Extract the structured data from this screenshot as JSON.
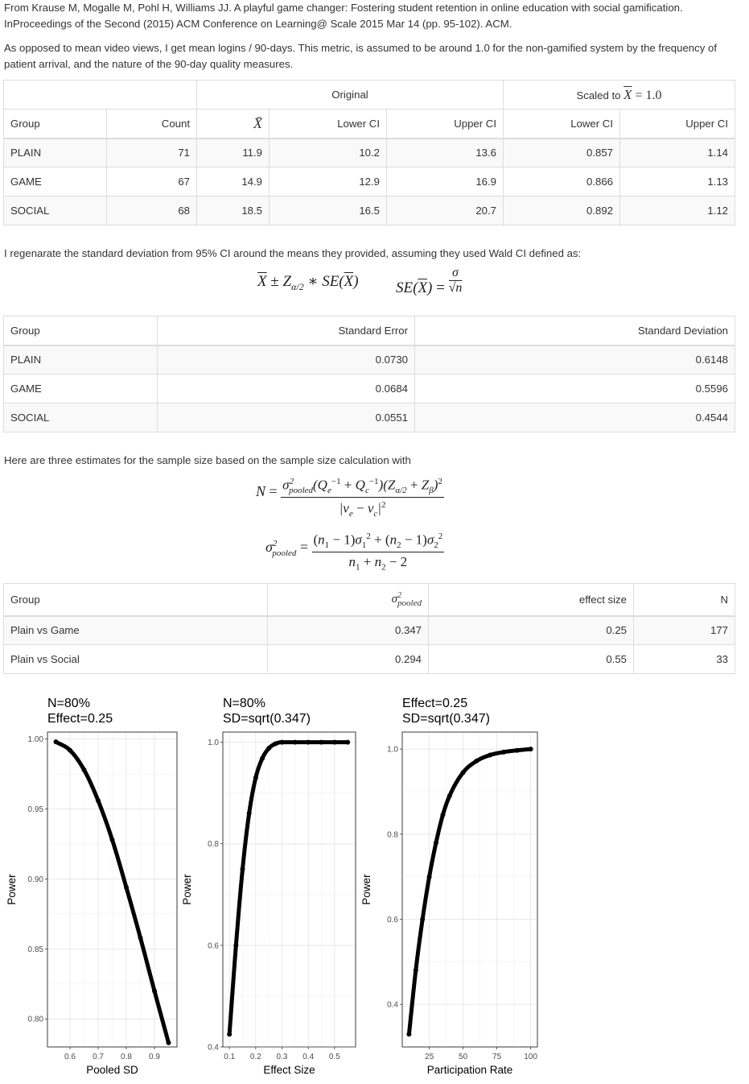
{
  "intro": {
    "citation": "From Krause M, Mogalle M, Pohl H, Williams JJ. A playful game changer: Fostering student retention in online education with social gamification. InProceedings of the Second (2015) ACM Conference on Learning@ Scale 2015 Mar 14 (pp. 95-102). ACM.",
    "note": "As opposed to mean video views, I get mean logins / 90-days. This metric, is assumed to be around 1.0 for the non-gamified system by the frequency of patient arrival, and the nature of the 90-day quality measures."
  },
  "table1": {
    "group_original": "Original",
    "group_scaled": "Scaled to",
    "headers": [
      "Group",
      "Count",
      "X̄",
      "Lower CI",
      "Upper CI",
      "Lower CI",
      "Upper CI"
    ],
    "rows": [
      [
        "PLAIN",
        "71",
        "11.9",
        "10.2",
        "13.6",
        "0.857",
        "1.14"
      ],
      [
        "GAME",
        "67",
        "14.9",
        "12.9",
        "16.9",
        "0.866",
        "1.13"
      ],
      [
        "SOCIAL",
        "68",
        "18.5",
        "16.5",
        "20.7",
        "0.892",
        "1.12"
      ]
    ]
  },
  "text2": "I regenarate the standard deviation from 95% CI around the means they provided, assuming they used Wald CI defined as:",
  "table2": {
    "headers": [
      "Group",
      "Standard Error",
      "Standard Deviation"
    ],
    "rows": [
      [
        "PLAIN",
        "0.0730",
        "0.6148"
      ],
      [
        "GAME",
        "0.0684",
        "0.5596"
      ],
      [
        "SOCIAL",
        "0.0551",
        "0.4544"
      ]
    ]
  },
  "text3": "Here are three estimates for the sample size based on the sample size calculation with",
  "table3": {
    "headers": [
      "Group",
      "σ²pooled",
      "effect size",
      "N"
    ],
    "rows": [
      [
        "Plain vs Game",
        "0.347",
        "0.25",
        "177"
      ],
      [
        "Plain vs Social",
        "0.294",
        "0.55",
        "33"
      ]
    ]
  },
  "chart_data": [
    {
      "type": "line",
      "title": "N=80%\nEffect=0.25",
      "xlabel": "Pooled SD",
      "ylabel": "Power",
      "xlim": [
        0.52,
        0.98
      ],
      "ylim": [
        0.78,
        1.005
      ],
      "xticks": [
        0.6,
        0.7,
        0.8,
        0.9
      ],
      "yticks": [
        0.8,
        0.85,
        0.9,
        0.95,
        1.0
      ],
      "ytick_labels": [
        "0.80",
        "0.85",
        "0.90",
        "0.95",
        "1.00"
      ],
      "x": [
        0.55,
        0.6,
        0.65,
        0.7,
        0.75,
        0.8,
        0.85,
        0.9,
        0.95
      ],
      "y": [
        0.998,
        0.992,
        0.978,
        0.956,
        0.928,
        0.894,
        0.858,
        0.82,
        0.783
      ]
    },
    {
      "type": "line",
      "title": "N=80%\nSD=sqrt(0.347)",
      "xlabel": "Effect Size",
      "ylabel": "Power",
      "xlim": [
        0.075,
        0.58
      ],
      "ylim": [
        0.4,
        1.02
      ],
      "xticks": [
        0.1,
        0.2,
        0.3,
        0.4,
        0.5
      ],
      "yticks": [
        0.4,
        0.6,
        0.8,
        1.0
      ],
      "ytick_labels": [
        "0.4",
        "0.6",
        "0.8",
        "1.0"
      ],
      "x": [
        0.1,
        0.125,
        0.15,
        0.175,
        0.2,
        0.225,
        0.25,
        0.275,
        0.3,
        0.35,
        0.4,
        0.45,
        0.5,
        0.55
      ],
      "y": [
        0.425,
        0.6,
        0.75,
        0.86,
        0.93,
        0.968,
        0.988,
        0.997,
        1.0,
        1.0,
        1.0,
        1.0,
        1.0,
        1.0
      ]
    },
    {
      "type": "line",
      "title": "Effect=0.25\nSD=sqrt(0.347)",
      "xlabel": "Participation Rate",
      "ylabel": "Power",
      "xlim": [
        5,
        105
      ],
      "ylim": [
        0.3,
        1.04
      ],
      "xticks": [
        25,
        50,
        75,
        100
      ],
      "yticks": [
        0.4,
        0.6,
        0.8,
        1.0
      ],
      "ytick_labels": [
        "0.4",
        "0.6",
        "0.8",
        "1.0"
      ],
      "x": [
        10,
        15,
        20,
        25,
        30,
        35,
        40,
        50,
        60,
        70,
        80,
        90,
        100
      ],
      "y": [
        0.33,
        0.48,
        0.6,
        0.7,
        0.78,
        0.845,
        0.89,
        0.945,
        0.972,
        0.986,
        0.993,
        0.997,
        1.0
      ]
    }
  ]
}
